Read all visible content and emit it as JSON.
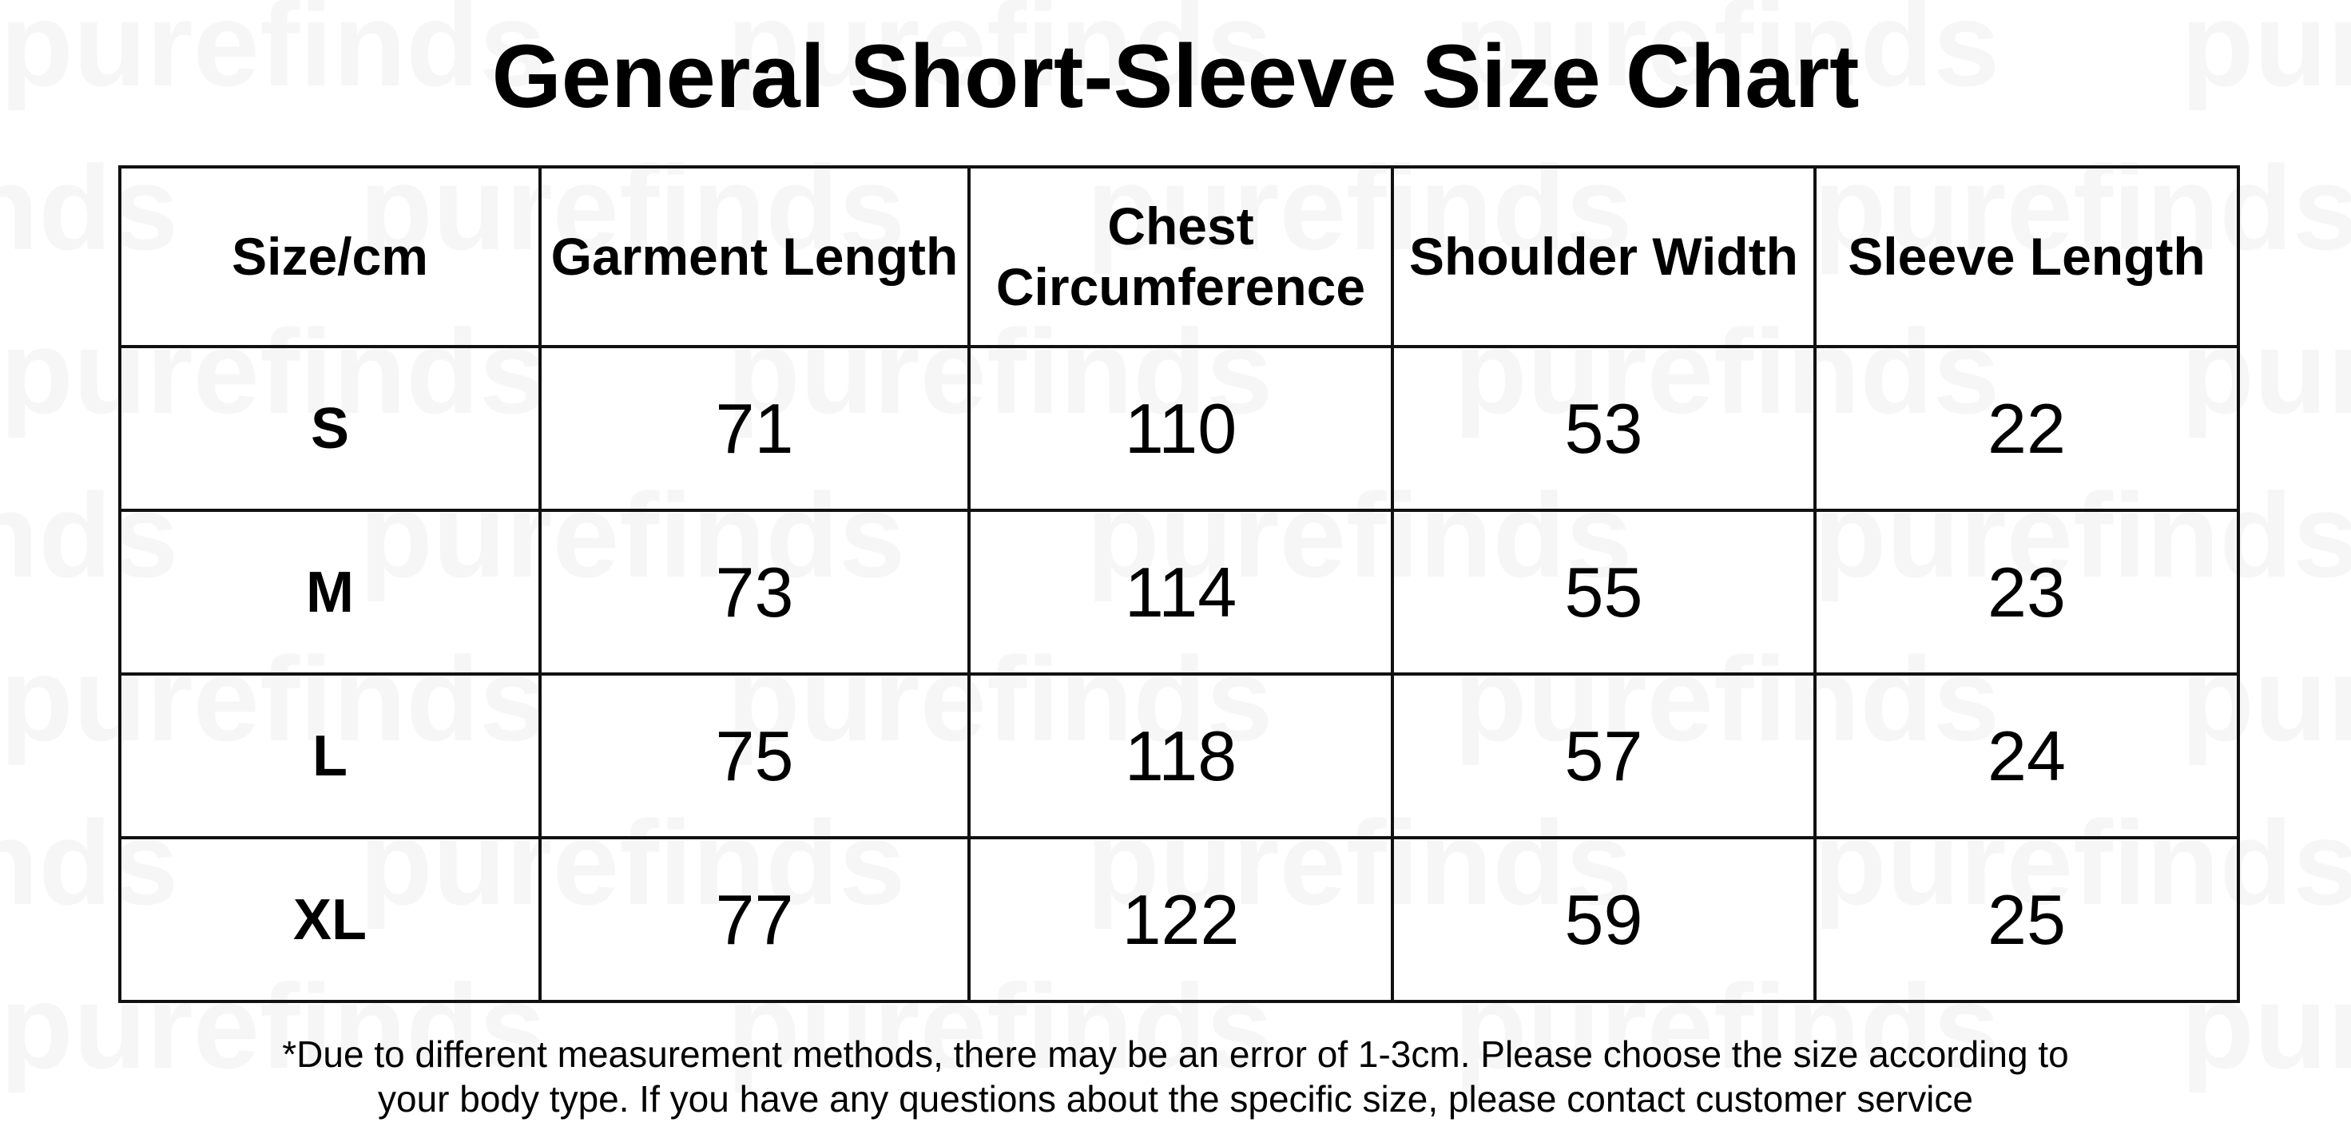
{
  "title": "General Short-Sleeve Size Chart",
  "watermark": "purefinds",
  "table": {
    "header": [
      "Size/cm",
      "Garment Length",
      "Chest Circumference",
      "Shoulder Width",
      "Sleeve Length"
    ],
    "rows": [
      [
        "S",
        "71",
        "110",
        "53",
        "22"
      ],
      [
        "M",
        "73",
        "114",
        "55",
        "23"
      ],
      [
        "L",
        "75",
        "118",
        "57",
        "24"
      ],
      [
        "XL",
        "77",
        "122",
        "59",
        "25"
      ]
    ]
  },
  "footnote": [
    "*Due to different measurement methods, there may be an error of 1-3cm. Please choose the size according to",
    "your body type. If you have any questions about the specific size, please contact customer service"
  ]
}
